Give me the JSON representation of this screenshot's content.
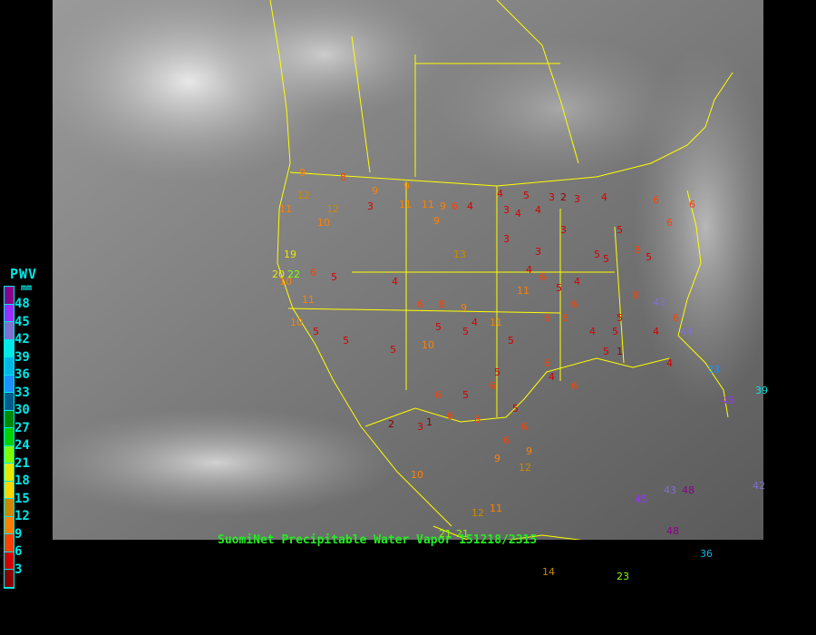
{
  "legend": {
    "title": "PWV",
    "unit": "mm",
    "ticks": [
      "48",
      "45",
      "42",
      "39",
      "36",
      "33",
      "30",
      "27",
      "24",
      "21",
      "18",
      "15",
      "12",
      "9",
      "6",
      "3"
    ],
    "colors": [
      "#8b008b",
      "#9a30ff",
      "#8070d0",
      "#00e8e8",
      "#00b8e8",
      "#1e90ff",
      "#005c8c",
      "#008800",
      "#00d000",
      "#80ff00",
      "#e8e800",
      "#ffd700",
      "#cc8800",
      "#ff8000",
      "#ff4000",
      "#d40000",
      "#8b0000"
    ]
  },
  "caption": "SuomiNet Precipitable Water Vapor 151218/2315",
  "stations": [
    {
      "v": "9"
    },
    {
      "v": "12"
    },
    {
      "v": "12"
    },
    {
      "v": "8"
    },
    {
      "v": "9"
    },
    {
      "v": "11"
    },
    {
      "v": "10"
    },
    {
      "v": "3"
    },
    {
      "v": "9"
    },
    {
      "v": "9"
    },
    {
      "v": "11"
    },
    {
      "v": "9"
    },
    {
      "v": "6"
    },
    {
      "v": "4"
    },
    {
      "v": "4"
    },
    {
      "v": "5"
    },
    {
      "v": "3"
    },
    {
      "v": "2"
    },
    {
      "v": "3"
    },
    {
      "v": "4"
    },
    {
      "v": "3"
    },
    {
      "v": "4"
    },
    {
      "v": "4"
    },
    {
      "v": "3"
    },
    {
      "v": "5"
    },
    {
      "v": "6"
    },
    {
      "v": "6"
    },
    {
      "v": "6"
    },
    {
      "v": "8"
    },
    {
      "v": "5"
    },
    {
      "v": "11"
    },
    {
      "v": "13"
    },
    {
      "v": "10"
    },
    {
      "v": "11"
    },
    {
      "v": "10"
    },
    {
      "v": "6"
    },
    {
      "v": "5"
    },
    {
      "v": "3"
    },
    {
      "v": "3"
    },
    {
      "v": "4"
    },
    {
      "v": "4"
    },
    {
      "v": "6"
    },
    {
      "v": "5"
    },
    {
      "v": "5"
    },
    {
      "v": "6"
    },
    {
      "v": "5"
    },
    {
      "v": "6"
    },
    {
      "v": "8"
    },
    {
      "v": "9"
    },
    {
      "v": "11"
    },
    {
      "v": "5"
    },
    {
      "v": "5"
    },
    {
      "v": "4"
    },
    {
      "v": "4"
    },
    {
      "v": "5"
    },
    {
      "v": "6"
    },
    {
      "v": "6"
    },
    {
      "v": "43"
    },
    {
      "v": "8"
    },
    {
      "v": "4"
    },
    {
      "v": "5"
    },
    {
      "v": "6"
    },
    {
      "v": "10"
    },
    {
      "v": "5"
    },
    {
      "v": "4"
    },
    {
      "v": "5"
    },
    {
      "v": "5"
    },
    {
      "v": "5"
    },
    {
      "v": "5"
    },
    {
      "v": "1"
    },
    {
      "v": "4"
    },
    {
      "v": "44"
    },
    {
      "v": "6"
    },
    {
      "v": "4"
    },
    {
      "v": "6"
    },
    {
      "v": "33"
    },
    {
      "v": "45"
    },
    {
      "v": "5"
    },
    {
      "v": "3"
    },
    {
      "v": "1"
    },
    {
      "v": "2"
    },
    {
      "v": "6"
    },
    {
      "v": "5"
    },
    {
      "v": "6"
    },
    {
      "v": "6"
    },
    {
      "v": "6"
    },
    {
      "v": "5"
    },
    {
      "v": "6"
    },
    {
      "v": "6"
    },
    {
      "v": "9"
    },
    {
      "v": "12"
    },
    {
      "v": "11"
    },
    {
      "v": "21"
    },
    {
      "v": "21"
    },
    {
      "v": "14"
    },
    {
      "v": "23"
    },
    {
      "v": "36"
    },
    {
      "v": "43"
    },
    {
      "v": "48"
    },
    {
      "v": "42"
    },
    {
      "v": "19"
    },
    {
      "v": "20"
    },
    {
      "v": "22"
    },
    {
      "v": "10"
    },
    {
      "v": "11"
    },
    {
      "v": "39"
    },
    {
      "v": "48"
    },
    {
      "v": "45"
    },
    {
      "v": "12"
    },
    {
      "v": "9"
    }
  ]
}
